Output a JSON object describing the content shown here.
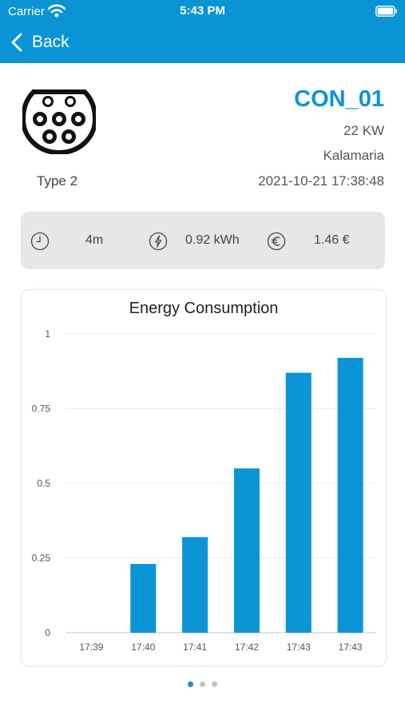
{
  "status_bar": {
    "carrier": "Carrier",
    "time": "5:43 PM"
  },
  "nav": {
    "back_label": "Back"
  },
  "connector": {
    "type": "Type 2",
    "name": "CON_01",
    "power": "22 KW",
    "location": "Kalamaria",
    "datetime": "2021-10-21 17:38:48"
  },
  "stats": {
    "duration": "4m",
    "energy": "0.92 kWh",
    "cost": "1.46 €"
  },
  "chart_data": {
    "type": "bar",
    "title": "Energy Consumption",
    "categories": [
      "17:39",
      "17:40",
      "17:41",
      "17:42",
      "17:43",
      "17:43"
    ],
    "values": [
      0,
      0.23,
      0.32,
      0.55,
      0.87,
      0.92
    ],
    "ylim": [
      0,
      1
    ],
    "yticks": [
      0,
      0.25,
      0.5,
      0.75,
      1
    ],
    "ytick_labels": [
      "0",
      "0.25",
      "0.5",
      "0.75",
      "1"
    ],
    "grid": true,
    "bar_color": "#0a94d6"
  },
  "pager": {
    "pages": 3,
    "active": 0
  },
  "colors": {
    "accent": "#0a94d6",
    "stats_bg": "#e7e7e7"
  }
}
